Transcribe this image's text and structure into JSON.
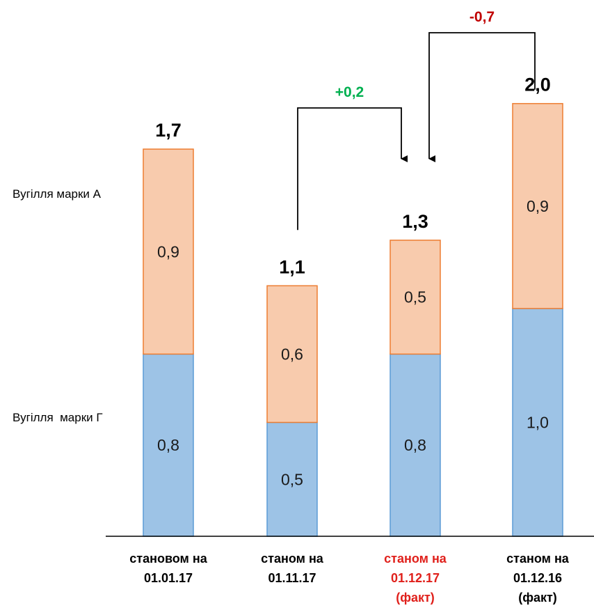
{
  "chart_data": {
    "type": "bar",
    "stacked": true,
    "categories": [
      [
        "становом на",
        "01.01.17"
      ],
      [
        "станом на",
        "01.11.17"
      ],
      [
        "станом на",
        "01.12.17",
        "(факт)"
      ],
      [
        "станом на",
        "01.12.16",
        "(факт)"
      ]
    ],
    "category_colors": [
      "#000000",
      "#000000",
      "#e0201b",
      "#000000"
    ],
    "series": [
      {
        "name": "Вугілля  марки Г",
        "values": [
          0.8,
          0.5,
          0.8,
          1.0
        ],
        "labels": [
          "0,8",
          "0,5",
          "0,8",
          "1,0"
        ],
        "color": "#9dc3e6",
        "border": "#5b9bd5"
      },
      {
        "name": "Вугілля марки А",
        "values": [
          0.9,
          0.6,
          0.5,
          0.9
        ],
        "labels": [
          "0,9",
          "0,6",
          "0,5",
          "0,9"
        ],
        "color": "#f8cbad",
        "border": "#ed7d31"
      }
    ],
    "totals": [
      1.7,
      1.1,
      1.3,
      2.0
    ],
    "total_labels": [
      "1,7",
      "1,1",
      "1,3",
      "2,0"
    ],
    "annotations": [
      {
        "text": "+0,2",
        "from": 1,
        "to": 2,
        "color": "#00b050"
      },
      {
        "text": "-0,7",
        "from": 3,
        "to": 2,
        "color": "#c00000"
      }
    ],
    "ylim": [
      0,
      2.0
    ],
    "grid": false,
    "legend": "left, inline with bars"
  }
}
